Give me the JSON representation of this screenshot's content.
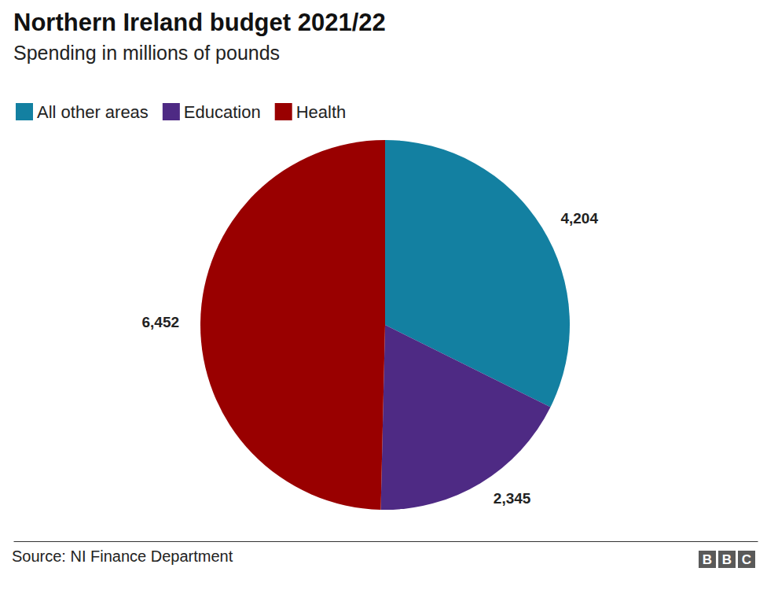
{
  "chart_data": {
    "type": "pie",
    "title": "Northern Ireland budget 2021/22",
    "subtitle": "Spending in millions of pounds",
    "categories": [
      "All other areas",
      "Education",
      "Health"
    ],
    "values": [
      4204,
      2345,
      6452
    ],
    "value_labels": [
      "4,204",
      "2,345",
      "6,452"
    ],
    "colors": [
      "#1380a1",
      "#4e2a84",
      "#990000"
    ],
    "data_labels": true,
    "legend": "top-left",
    "source": "Source: NI Finance Department",
    "branding": "BBC"
  }
}
